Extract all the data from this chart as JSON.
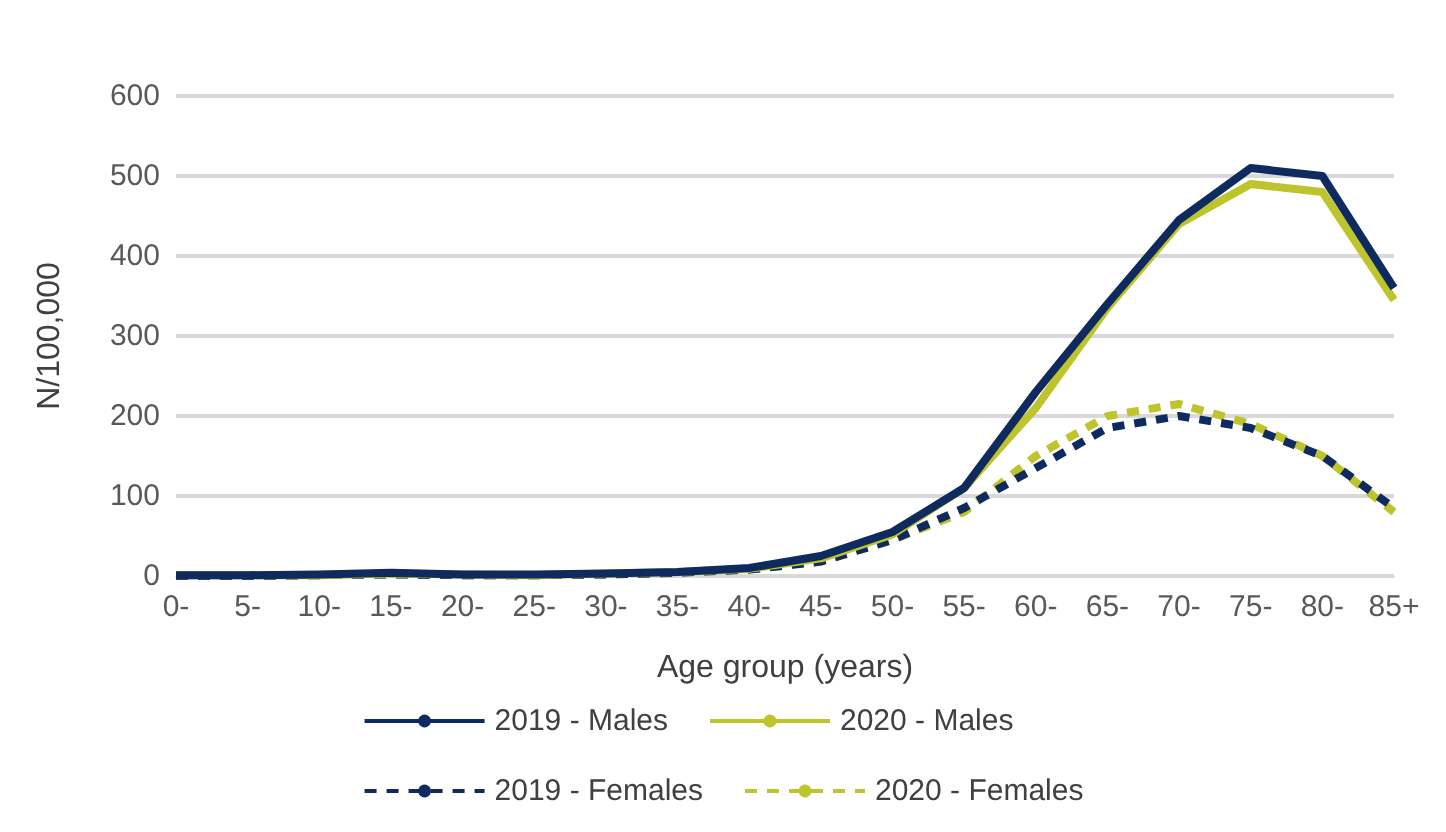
{
  "chart_data": {
    "type": "line",
    "xlabel": "Age group (years)",
    "ylabel": "N/100,000",
    "categories": [
      "0-",
      "5-",
      "10-",
      "15-",
      "20-",
      "25-",
      "30-",
      "35-",
      "40-",
      "45-",
      "50-",
      "55-",
      "60-",
      "65-",
      "70-",
      "75-",
      "80-",
      "85+"
    ],
    "series": [
      {
        "name": "2019 - Males",
        "color": "#0f2a5f",
        "line_style": "solid",
        "values": [
          1,
          1,
          2,
          4,
          2,
          2,
          3,
          5,
          10,
          25,
          55,
          110,
          230,
          340,
          445,
          510,
          500,
          360
        ]
      },
      {
        "name": "2020 - Males",
        "color": "#bec42c",
        "line_style": "solid",
        "values": [
          1,
          1,
          1,
          3,
          2,
          1,
          3,
          5,
          9,
          22,
          52,
          110,
          210,
          335,
          440,
          490,
          480,
          345
        ]
      },
      {
        "name": "2019 - Females",
        "color": "#0f2a5f",
        "line_style": "dashed",
        "values": [
          0,
          0,
          1,
          2,
          1,
          1,
          2,
          4,
          8,
          18,
          45,
          85,
          135,
          185,
          200,
          185,
          150,
          85
        ]
      },
      {
        "name": "2020 - Females",
        "color": "#bec42c",
        "line_style": "dashed",
        "values": [
          0,
          0,
          1,
          2,
          1,
          1,
          2,
          4,
          8,
          18,
          45,
          80,
          150,
          200,
          215,
          190,
          150,
          80
        ]
      }
    ],
    "ylim": [
      0,
      600
    ],
    "yticks": [
      0,
      100,
      200,
      300,
      400,
      500,
      600
    ],
    "grid": "y",
    "legend": "bottom",
    "marker": "none"
  }
}
